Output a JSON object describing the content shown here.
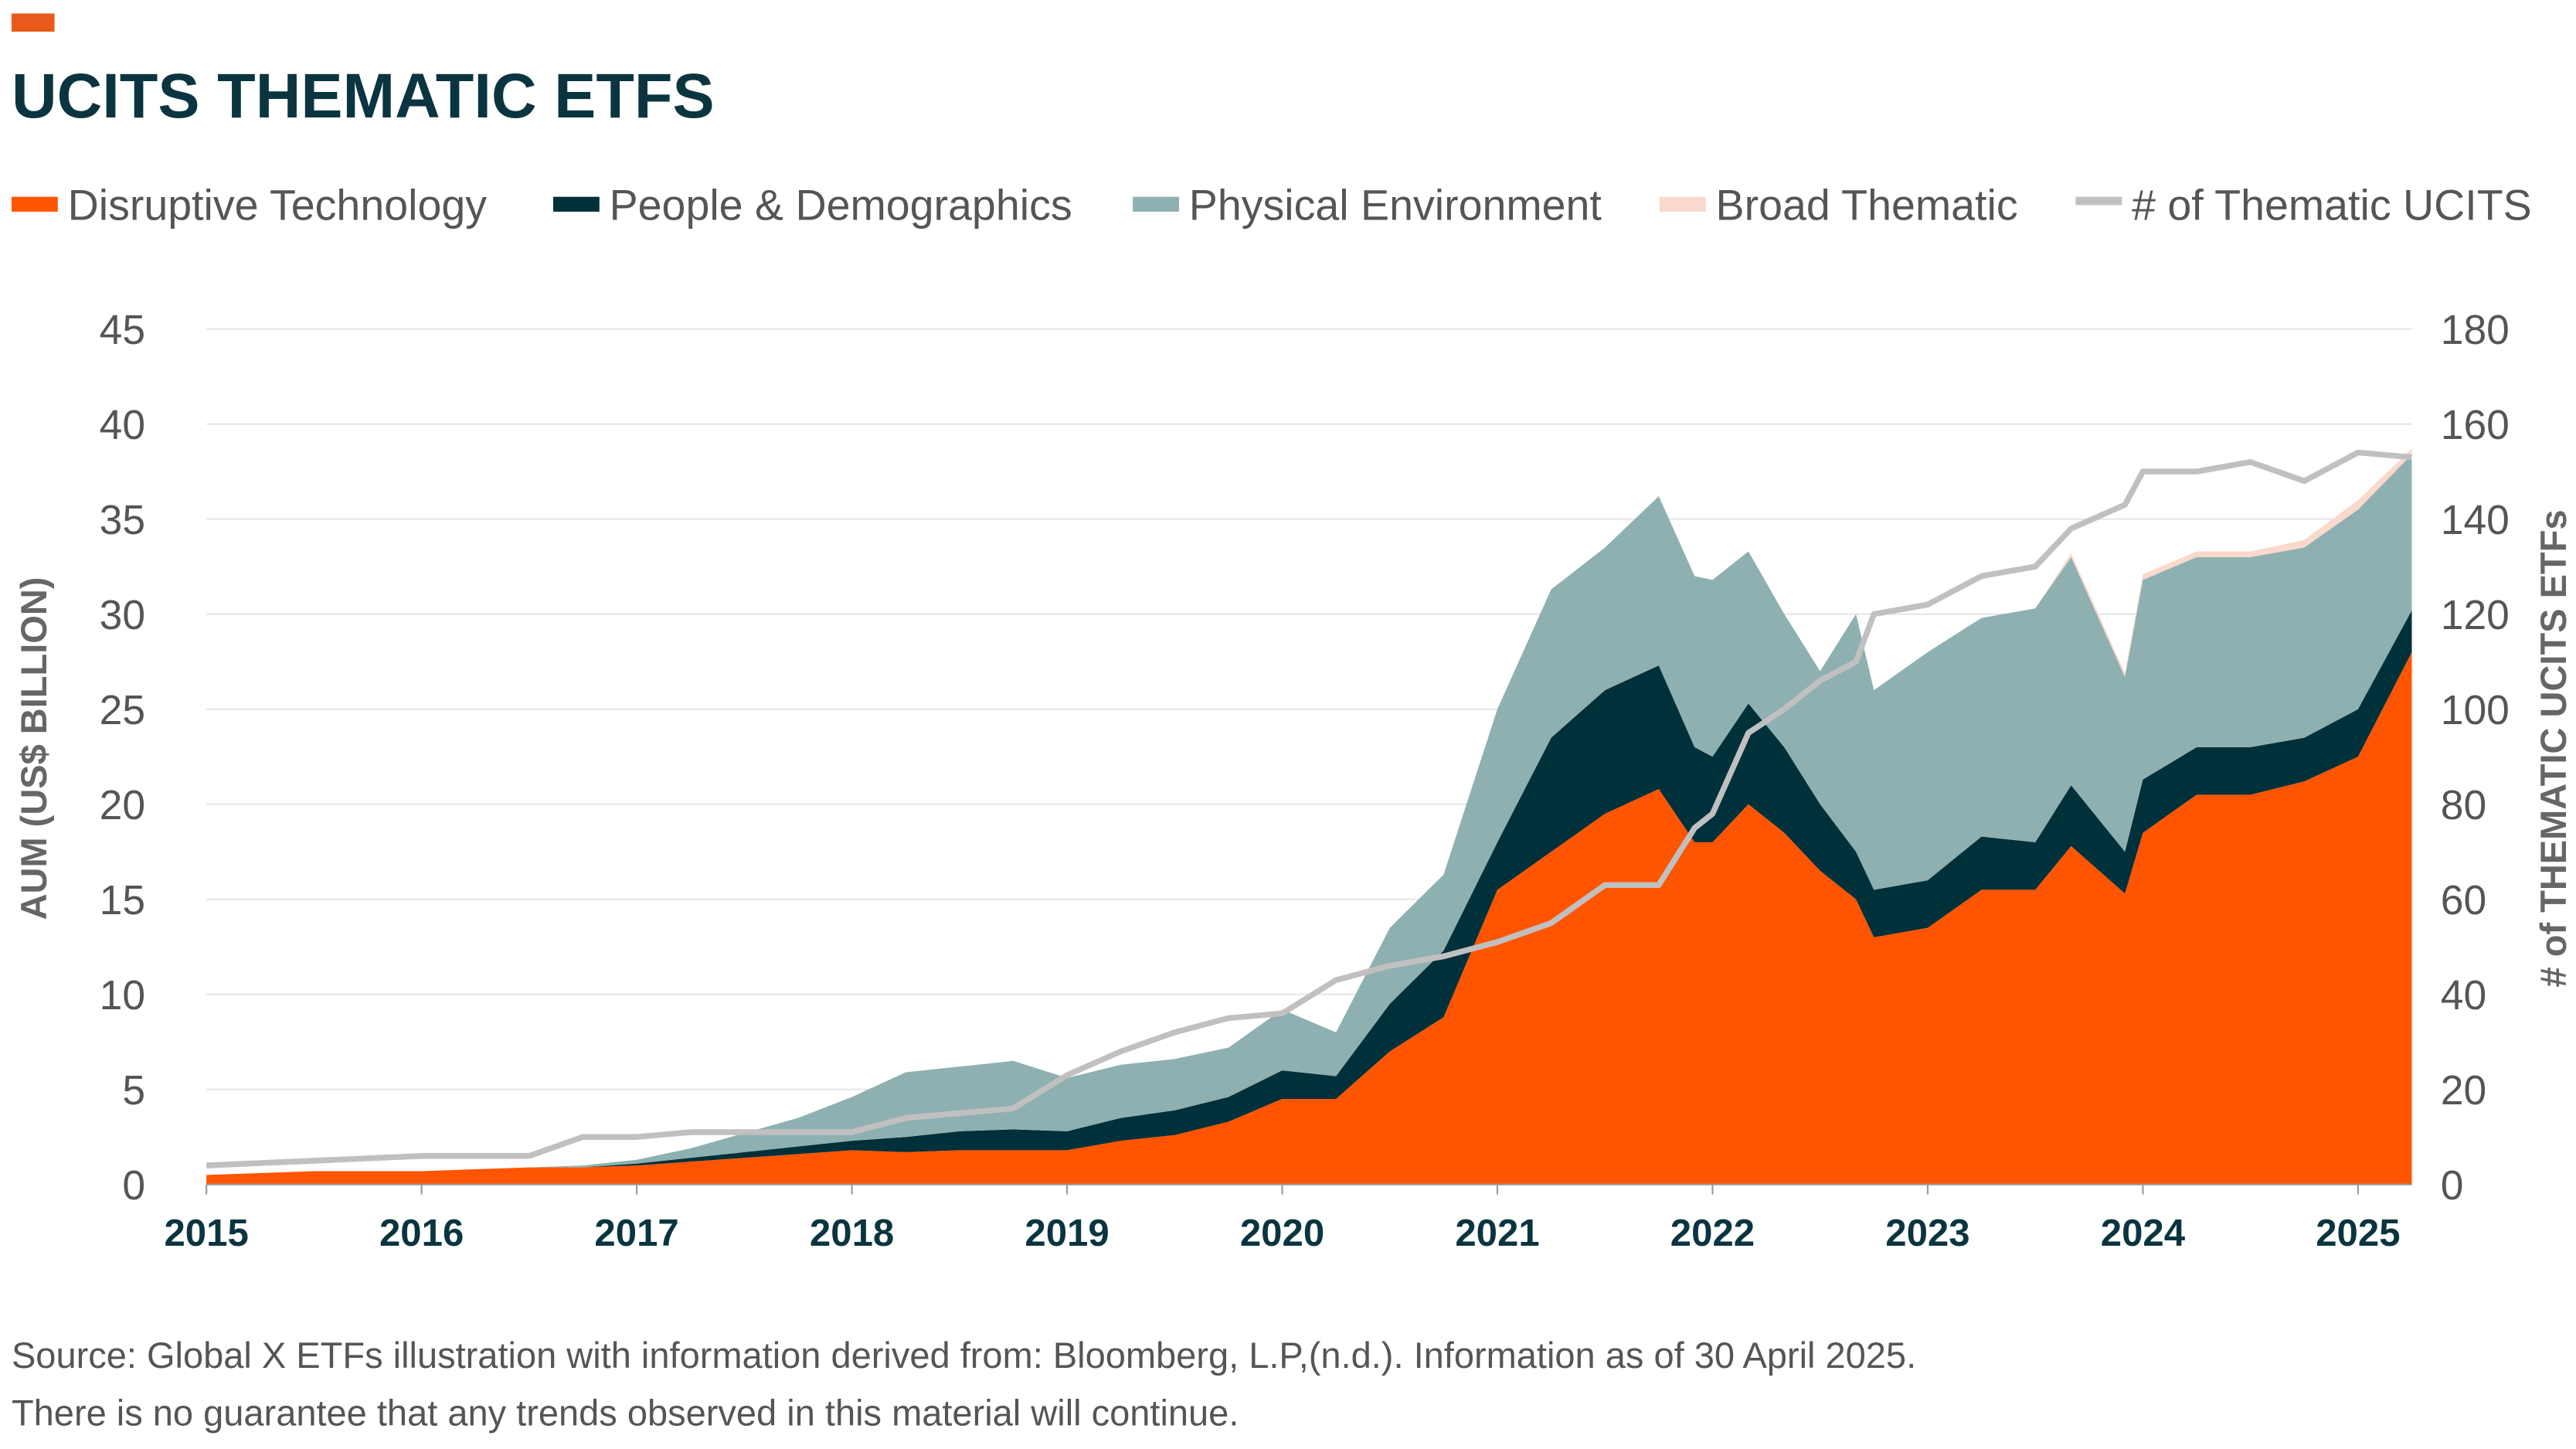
{
  "chart_data": {
    "type": "area",
    "title": "UCITS THEMATIC ETFS",
    "ylabel": "AUM (US$ BILLION)",
    "y2label": "# of THEMATIC UCITS ETFs",
    "ylim": [
      0,
      45
    ],
    "y2lim": [
      0,
      180
    ],
    "yticks": [
      "0",
      "5",
      "10",
      "15",
      "20",
      "25",
      "30",
      "35",
      "40",
      "45"
    ],
    "y2ticks": [
      "0",
      "20",
      "40",
      "60",
      "80",
      "100",
      "120",
      "140",
      "160",
      "180"
    ],
    "xticks": [
      "2015",
      "2016",
      "2017",
      "2018",
      "2019",
      "2020",
      "2021",
      "2022",
      "2023",
      "2024",
      "2025"
    ],
    "grid": true,
    "legend_position": "top",
    "stacked": true,
    "x": [
      "2015-01",
      "2015-07",
      "2016-01",
      "2016-07",
      "2016-10",
      "2017-01",
      "2017-04",
      "2017-07",
      "2017-10",
      "2018-01",
      "2018-04",
      "2018-07",
      "2018-10",
      "2019-01",
      "2019-04",
      "2019-07",
      "2019-10",
      "2020-01",
      "2020-04",
      "2020-07",
      "2020-10",
      "2021-01",
      "2021-04",
      "2021-07",
      "2021-10",
      "2021-12",
      "2022-01",
      "2022-03",
      "2022-05",
      "2022-07",
      "2022-09",
      "2022-10",
      "2023-01",
      "2023-04",
      "2023-07",
      "2023-09",
      "2023-12",
      "2024-01",
      "2024-04",
      "2024-07",
      "2024-10",
      "2025-01",
      "2025-04"
    ],
    "series": [
      {
        "name": "Disruptive Technology",
        "color": "#ff5500",
        "axis": "left",
        "values": [
          0.5,
          0.7,
          0.7,
          0.9,
          0.9,
          1.0,
          1.2,
          1.4,
          1.6,
          1.8,
          1.7,
          1.8,
          1.8,
          1.8,
          2.3,
          2.6,
          3.3,
          4.5,
          4.5,
          7.0,
          8.8,
          15.5,
          17.5,
          19.5,
          20.8,
          18.0,
          18.0,
          20.0,
          18.5,
          16.5,
          15.0,
          13.0,
          13.5,
          15.5,
          15.5,
          17.8,
          15.3,
          18.5,
          20.5,
          20.5,
          21.2,
          22.5,
          28.0
        ]
      },
      {
        "name": "People & Demographics",
        "color": "#00303a",
        "axis": "left",
        "values": [
          0,
          0,
          0,
          0,
          0,
          0.1,
          0.2,
          0.3,
          0.4,
          0.5,
          0.8,
          1.0,
          1.1,
          1.0,
          1.2,
          1.3,
          1.3,
          1.5,
          1.2,
          2.5,
          3.5,
          2.5,
          6.0,
          6.5,
          6.5,
          5.0,
          4.5,
          5.3,
          4.5,
          3.5,
          2.5,
          2.5,
          2.5,
          2.8,
          2.5,
          3.2,
          2.2,
          2.8,
          2.5,
          2.5,
          2.3,
          2.5,
          2.2
        ]
      },
      {
        "name": "Physical Environment",
        "color": "#8fb0b0",
        "axis": "left",
        "values": [
          0,
          0,
          0,
          0,
          0.1,
          0.2,
          0.5,
          1.0,
          1.5,
          2.3,
          3.4,
          3.4,
          3.6,
          2.8,
          2.8,
          2.7,
          2.6,
          3.2,
          2.3,
          4.0,
          4.0,
          7.0,
          7.8,
          7.5,
          8.9,
          9.0,
          9.3,
          8.0,
          7.0,
          7.0,
          12.5,
          10.5,
          12.0,
          11.5,
          12.3,
          12.0,
          9.2,
          10.5,
          10.0,
          10.0,
          10.0,
          10.5,
          8.2
        ]
      },
      {
        "name": "Broad Thematic",
        "color": "#f9d9cc",
        "axis": "left",
        "values": [
          0,
          0,
          0,
          0,
          0,
          0,
          0,
          0,
          0,
          0,
          0,
          0,
          0,
          0,
          0,
          0,
          0,
          0,
          0,
          0,
          0,
          0,
          0,
          0,
          0,
          0,
          0,
          0,
          0,
          0,
          0,
          0,
          0,
          0,
          0,
          0.2,
          0.2,
          0.3,
          0.3,
          0.3,
          0.4,
          0.5,
          0.3
        ]
      },
      {
        "name": "# of Thematic UCITS",
        "color": "#c0c0c0",
        "axis": "right",
        "type": "line",
        "values": [
          4,
          5,
          6,
          6,
          10,
          10,
          11,
          11,
          11,
          11,
          14,
          15,
          16,
          23,
          28,
          32,
          35,
          36,
          43,
          46,
          48,
          51,
          55,
          63,
          63,
          75,
          78,
          95,
          100,
          106,
          110,
          120,
          122,
          128,
          130,
          138,
          143,
          150,
          150,
          152,
          148,
          154,
          153
        ]
      }
    ]
  },
  "footnotes": [
    "Source: Global X ETFs illustration with information derived from: Bloomberg, L.P,(n.d.). Information as of 30 April 2025.",
    "There is no guarantee that any trends observed in this material will continue."
  ]
}
